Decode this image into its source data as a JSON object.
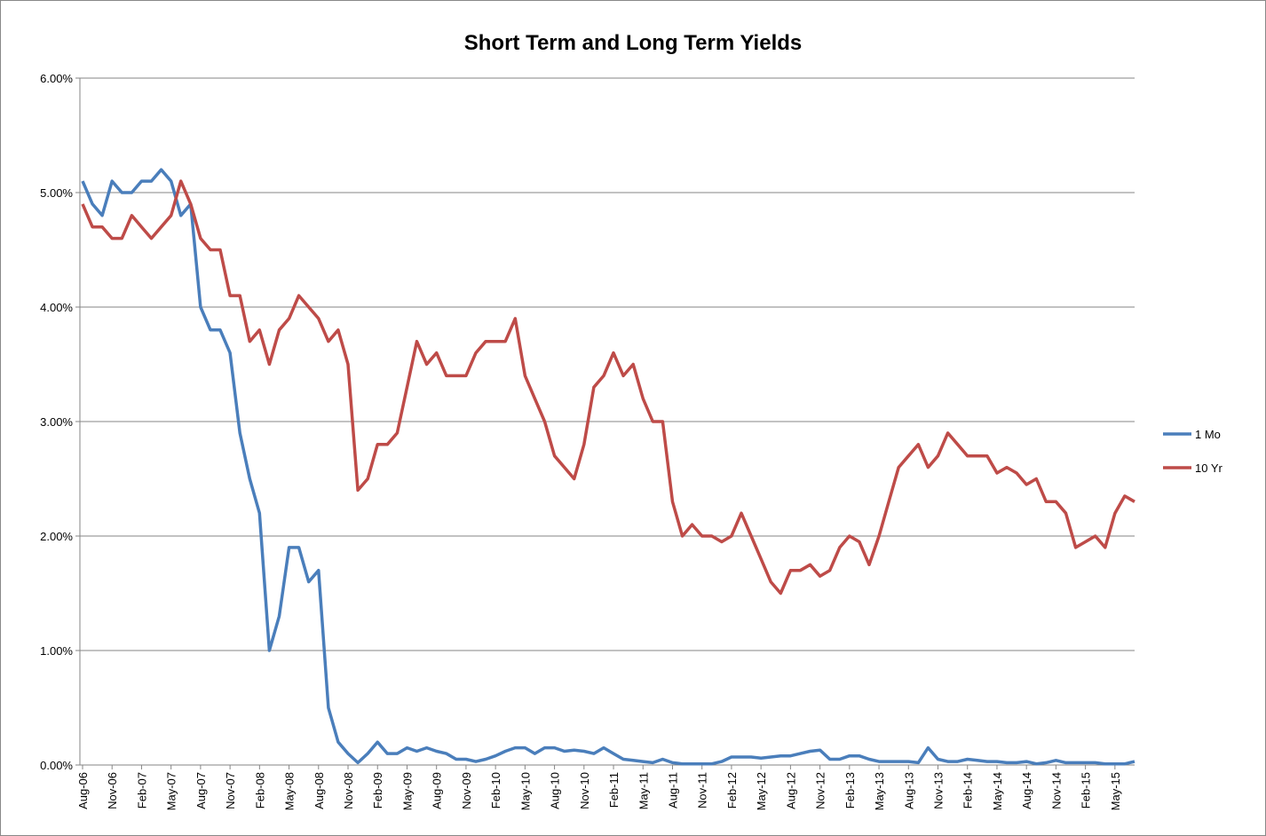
{
  "chart_data": {
    "type": "line",
    "title": "Short Term and Long Term Yields",
    "categories": [
      "Aug-06",
      null,
      null,
      "Nov-06",
      null,
      null,
      "Feb-07",
      null,
      null,
      "May-07",
      null,
      null,
      "Aug-07",
      null,
      null,
      "Nov-07",
      null,
      null,
      "Feb-08",
      null,
      null,
      "May-08",
      null,
      null,
      "Aug-08",
      null,
      null,
      "Nov-08",
      null,
      null,
      "Feb-09",
      null,
      null,
      "May-09",
      null,
      null,
      "Aug-09",
      null,
      null,
      "Nov-09",
      null,
      null,
      "Feb-10",
      null,
      null,
      "May-10",
      null,
      null,
      "Aug-10",
      null,
      null,
      "Nov-10",
      null,
      null,
      "Feb-11",
      null,
      null,
      "May-11",
      null,
      null,
      "Aug-11",
      null,
      null,
      "Nov-11",
      null,
      null,
      "Feb-12",
      null,
      null,
      "May-12",
      null,
      null,
      "Aug-12",
      null,
      null,
      "Nov-12",
      null,
      null,
      "Feb-13",
      null,
      null,
      "May-13",
      null,
      null,
      "Aug-13",
      null,
      null,
      "Nov-13",
      null,
      null,
      "Feb-14",
      null,
      null,
      "May-14",
      null,
      null,
      "Aug-14",
      null,
      null,
      "Nov-14",
      null,
      null,
      "Feb-15",
      null,
      null,
      "May-15",
      null,
      null
    ],
    "series": [
      {
        "name": "1 Mo",
        "color": "#4a7ebb",
        "values": [
          5.1,
          4.9,
          4.8,
          5.1,
          5.0,
          5.0,
          5.1,
          5.1,
          5.2,
          5.1,
          4.8,
          4.9,
          4.0,
          3.8,
          3.8,
          3.6,
          2.9,
          2.5,
          2.2,
          1.0,
          1.3,
          1.9,
          1.9,
          1.6,
          1.7,
          0.5,
          0.2,
          0.1,
          0.02,
          0.1,
          0.2,
          0.1,
          0.1,
          0.15,
          0.12,
          0.15,
          0.12,
          0.1,
          0.05,
          0.05,
          0.03,
          0.05,
          0.08,
          0.12,
          0.15,
          0.15,
          0.1,
          0.15,
          0.15,
          0.12,
          0.13,
          0.12,
          0.1,
          0.15,
          0.1,
          0.05,
          0.04,
          0.03,
          0.02,
          0.05,
          0.02,
          0.01,
          0.01,
          0.01,
          0.01,
          0.03,
          0.07,
          0.07,
          0.07,
          0.06,
          0.07,
          0.08,
          0.08,
          0.1,
          0.12,
          0.13,
          0.05,
          0.05,
          0.08,
          0.08,
          0.05,
          0.03,
          0.03,
          0.03,
          0.03,
          0.02,
          0.15,
          0.05,
          0.03,
          0.03,
          0.05,
          0.04,
          0.03,
          0.03,
          0.02,
          0.02,
          0.03,
          0.01,
          0.02,
          0.04,
          0.02,
          0.02,
          0.02,
          0.02,
          0.01,
          0.01,
          0.01,
          0.03
        ]
      },
      {
        "name": "10 Yr",
        "color": "#be4b48",
        "values": [
          4.9,
          4.7,
          4.7,
          4.6,
          4.6,
          4.8,
          4.7,
          4.6,
          4.7,
          4.8,
          5.1,
          4.9,
          4.6,
          4.5,
          4.5,
          4.1,
          4.1,
          3.7,
          3.8,
          3.5,
          3.8,
          3.9,
          4.1,
          4.0,
          3.9,
          3.7,
          3.8,
          3.5,
          2.4,
          2.5,
          2.8,
          2.8,
          2.9,
          3.3,
          3.7,
          3.5,
          3.6,
          3.4,
          3.4,
          3.4,
          3.6,
          3.7,
          3.7,
          3.7,
          3.9,
          3.4,
          3.2,
          3.0,
          2.7,
          2.6,
          2.5,
          2.8,
          3.3,
          3.4,
          3.6,
          3.4,
          3.5,
          3.2,
          3.0,
          3.0,
          2.3,
          2.0,
          2.1,
          2.0,
          2.0,
          1.95,
          2.0,
          2.2,
          2.0,
          1.8,
          1.6,
          1.5,
          1.7,
          1.7,
          1.75,
          1.65,
          1.7,
          1.9,
          2.0,
          1.95,
          1.75,
          2.0,
          2.3,
          2.6,
          2.7,
          2.8,
          2.6,
          2.7,
          2.9,
          2.8,
          2.7,
          2.7,
          2.7,
          2.55,
          2.6,
          2.55,
          2.45,
          2.5,
          2.3,
          2.3,
          2.2,
          1.9,
          1.95,
          2.0,
          1.9,
          2.2,
          2.35,
          2.3
        ]
      }
    ],
    "ylim": [
      0,
      6
    ],
    "yticks": [
      {
        "value": 0,
        "label": "0.00%"
      },
      {
        "value": 1,
        "label": "1.00%"
      },
      {
        "value": 2,
        "label": "2.00%"
      },
      {
        "value": 3,
        "label": "3.00%"
      },
      {
        "value": 4,
        "label": "4.00%"
      },
      {
        "value": 5,
        "label": "5.00%"
      },
      {
        "value": 6,
        "label": "6.00%"
      }
    ],
    "grid": true,
    "legend": "right"
  }
}
